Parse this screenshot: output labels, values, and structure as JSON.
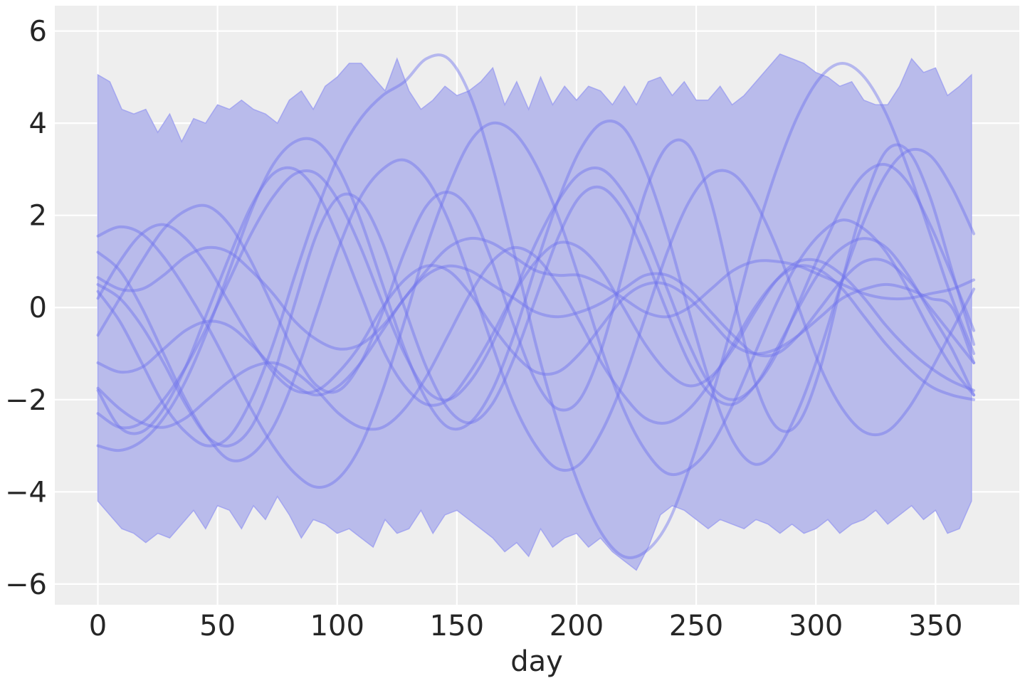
{
  "chart_data": {
    "type": "line",
    "title": "",
    "xlabel": "day",
    "ylabel": "",
    "xlim": [
      -18,
      385
    ],
    "ylim": [
      -6.45,
      6.55
    ],
    "x_ticks": [
      0,
      50,
      100,
      150,
      200,
      250,
      300,
      350
    ],
    "y_ticks": [
      -6,
      -4,
      -2,
      0,
      2,
      4,
      6
    ],
    "x_tick_labels": [
      "0",
      "50",
      "100",
      "150",
      "200",
      "250",
      "300",
      "350"
    ],
    "y_tick_labels": [
      "−6",
      "−4",
      "−2",
      "0",
      "2",
      "4",
      "6"
    ],
    "grid": true,
    "legend": "none",
    "colors": {
      "background": "#eeeeee",
      "grid": "#ffffff",
      "band_fill": "#b9bbeb",
      "band_edge": "#9a9cf0",
      "line": "#6f73ee"
    },
    "band": {
      "x": [
        0,
        5,
        10,
        15,
        20,
        25,
        30,
        35,
        40,
        45,
        50,
        55,
        60,
        65,
        70,
        75,
        80,
        85,
        90,
        95,
        100,
        105,
        110,
        115,
        120,
        125,
        130,
        135,
        140,
        145,
        150,
        155,
        160,
        165,
        170,
        175,
        180,
        185,
        190,
        195,
        200,
        205,
        210,
        215,
        220,
        225,
        230,
        235,
        240,
        245,
        250,
        255,
        260,
        265,
        270,
        275,
        280,
        285,
        290,
        295,
        300,
        305,
        310,
        315,
        320,
        325,
        330,
        335,
        340,
        345,
        350,
        355,
        360,
        365
      ],
      "upper": [
        5.05,
        4.9,
        4.3,
        4.2,
        4.3,
        3.8,
        4.2,
        3.6,
        4.1,
        4.0,
        4.4,
        4.3,
        4.5,
        4.3,
        4.2,
        4.0,
        4.5,
        4.7,
        4.3,
        4.8,
        5.0,
        5.3,
        5.3,
        5.0,
        4.7,
        5.4,
        4.7,
        4.3,
        4.5,
        4.8,
        4.6,
        4.7,
        4.9,
        5.2,
        4.4,
        4.9,
        4.3,
        5.0,
        4.4,
        4.8,
        4.5,
        4.8,
        4.7,
        4.4,
        4.8,
        4.4,
        4.9,
        5.0,
        4.6,
        4.9,
        4.5,
        4.5,
        4.8,
        4.4,
        4.6,
        4.9,
        5.2,
        5.5,
        5.4,
        5.3,
        5.1,
        5.0,
        4.8,
        4.9,
        4.5,
        4.4,
        4.4,
        4.8,
        5.4,
        5.1,
        5.2,
        4.6,
        4.8,
        5.05
      ],
      "lower": [
        -4.2,
        -4.5,
        -4.8,
        -4.9,
        -5.1,
        -4.9,
        -5.0,
        -4.7,
        -4.4,
        -4.8,
        -4.3,
        -4.4,
        -4.8,
        -4.3,
        -4.6,
        -4.1,
        -4.5,
        -5.0,
        -4.6,
        -4.7,
        -4.9,
        -4.8,
        -5.0,
        -5.2,
        -4.6,
        -4.9,
        -4.8,
        -4.4,
        -4.9,
        -4.5,
        -4.4,
        -4.6,
        -4.8,
        -5.0,
        -5.3,
        -5.1,
        -5.4,
        -4.8,
        -5.2,
        -5.0,
        -4.9,
        -5.2,
        -5.0,
        -5.3,
        -5.5,
        -5.7,
        -5.2,
        -4.5,
        -4.3,
        -4.4,
        -4.6,
        -4.8,
        -4.6,
        -4.7,
        -4.8,
        -4.6,
        -4.7,
        -4.9,
        -4.7,
        -4.9,
        -4.8,
        -4.6,
        -4.9,
        -4.7,
        -4.6,
        -4.4,
        -4.7,
        -4.5,
        -4.3,
        -4.6,
        -4.4,
        -4.9,
        -4.8,
        -4.2
      ]
    },
    "x_range": [
      0,
      366
    ],
    "series": [
      {
        "values": [
          1.55,
          1.75,
          1.6,
          1.1,
          0.4,
          -0.4,
          -1.3,
          -2.2,
          -3.0,
          -3.6,
          -3.9,
          -3.7,
          -3.0,
          -1.8,
          -0.3,
          1.3,
          2.6,
          3.6,
          4.0,
          3.8,
          3.1,
          2.0,
          0.6,
          -0.9,
          -2.2,
          -3.1,
          -3.6,
          -3.5,
          -3.0,
          -2.1,
          -1.0,
          0.1,
          1.0,
          1.6,
          1.9,
          1.7,
          1.2,
          0.4,
          -0.5,
          -1.3,
          -1.9
        ]
      },
      {
        "values": [
          0.5,
          0.2,
          -0.4,
          -1.2,
          -2.1,
          -2.8,
          -3.0,
          -2.6,
          -1.5,
          0.1,
          1.6,
          2.4,
          2.3,
          1.4,
          0.0,
          -1.3,
          -2.2,
          -2.5,
          -2.1,
          -1.1,
          0.2,
          1.5,
          2.4,
          2.6,
          2.1,
          1.1,
          -0.1,
          -1.2,
          -1.9,
          -2.1,
          -1.7,
          -0.9,
          0.0,
          0.8,
          1.3,
          1.5,
          1.3,
          0.7,
          -0.1,
          -0.9,
          -1.9
        ]
      },
      {
        "values": [
          -3.0,
          -3.1,
          -2.9,
          -2.4,
          -1.6,
          -0.5,
          0.8,
          2.1,
          3.1,
          3.6,
          3.6,
          3.0,
          1.9,
          0.5,
          -0.9,
          -2.0,
          -2.6,
          -2.5,
          -1.8,
          -0.6,
          0.9,
          2.3,
          3.4,
          4.0,
          3.9,
          3.0,
          1.6,
          -0.1,
          -1.7,
          -2.9,
          -3.4,
          -3.1,
          -2.2,
          -0.9,
          0.6,
          1.9,
          2.9,
          3.4,
          3.3,
          2.6,
          1.6
        ]
      },
      {
        "values": [
          -0.6,
          0.2,
          1.0,
          1.7,
          2.1,
          2.2,
          1.8,
          1.0,
          0.0,
          -1.0,
          -1.7,
          -1.8,
          -1.2,
          -0.1,
          1.2,
          2.2,
          2.5,
          2.1,
          1.0,
          -0.4,
          -1.6,
          -2.2,
          -2.0,
          -0.9,
          0.8,
          2.5,
          3.5,
          3.5,
          2.3,
          0.3,
          -1.6,
          -2.6,
          -2.5,
          -1.3,
          0.6,
          2.3,
          3.4,
          3.4,
          2.4,
          0.8,
          -0.8
        ]
      },
      {
        "values": [
          0.65,
          0.4,
          0.4,
          0.7,
          1.1,
          1.3,
          1.2,
          0.8,
          0.3,
          -0.3,
          -0.7,
          -0.9,
          -0.8,
          -0.4,
          0.2,
          0.8,
          1.3,
          1.5,
          1.4,
          1.1,
          0.8,
          0.7,
          0.7,
          0.5,
          0.2,
          -0.1,
          -0.2,
          0.0,
          0.4,
          0.8,
          1.0,
          1.0,
          0.9,
          0.7,
          0.5,
          0.3,
          0.2,
          0.2,
          0.3,
          0.4,
          0.6
        ]
      },
      {
        "values": [
          -1.2,
          -1.4,
          -1.3,
          -0.9,
          -0.5,
          -0.3,
          -0.4,
          -0.8,
          -1.3,
          -1.7,
          -1.9,
          -1.7,
          -1.2,
          -0.5,
          0.2,
          0.7,
          0.9,
          0.8,
          0.5,
          0.2,
          -0.1,
          -0.2,
          -0.1,
          0.1,
          0.4,
          0.7,
          0.7,
          0.4,
          -0.1,
          -0.6,
          -1.0,
          -1.0,
          -0.6,
          0.0,
          0.6,
          1.0,
          1.0,
          0.6,
          0.0,
          -0.6,
          -1.2
        ]
      },
      {
        "values": [
          -1.8,
          -2.6,
          -2.7,
          -2.2,
          -1.3,
          -0.1,
          1.1,
          2.2,
          2.9,
          3.0,
          2.5,
          1.5,
          0.3,
          -0.9,
          -1.7,
          -2.1,
          -2.0,
          -1.4,
          -0.6,
          0.3,
          1.0,
          1.4,
          1.3,
          0.8,
          0.0,
          -0.8,
          -1.4,
          -1.7,
          -1.5,
          -0.9,
          -0.1,
          0.6,
          1.0,
          1.0,
          0.7,
          0.2,
          -0.4,
          -0.9,
          -1.3,
          -1.6,
          -1.8
        ]
      },
      {
        "values": [
          -2.3,
          -2.6,
          -2.5,
          -2.0,
          -1.3,
          -0.4,
          0.6,
          1.6,
          2.4,
          2.9,
          2.9,
          2.3,
          1.3,
          0.1,
          -1.0,
          -1.8,
          -2.0,
          -1.6,
          -0.8,
          0.3,
          1.4,
          2.3,
          2.9,
          3.0,
          2.5,
          1.6,
          0.4,
          -0.8,
          -1.7,
          -2.0,
          -1.7,
          -1.0,
          0.1,
          1.2,
          2.2,
          2.9,
          3.1,
          2.7,
          1.8,
          0.7,
          -0.5
        ]
      },
      {
        "values": [
          0.2,
          1.0,
          1.6,
          1.8,
          1.5,
          0.9,
          0.1,
          -0.7,
          -1.4,
          -1.8,
          -1.8,
          -1.4,
          -0.8,
          0.0,
          0.6,
          0.9,
          0.8,
          0.3,
          -0.4,
          -1.0,
          -1.4,
          -1.4,
          -1.0,
          -0.4,
          0.2,
          0.5,
          0.5,
          0.2,
          -0.3,
          -0.8,
          -1.0,
          -0.9,
          -0.6,
          -0.2,
          0.2,
          0.4,
          0.5,
          0.4,
          0.2,
          0.0,
          -1.2
        ]
      },
      {
        "values": [
          -1.75,
          -2.2,
          -2.5,
          -2.6,
          -2.4,
          -2.0,
          -1.6,
          -1.3,
          -1.2,
          -1.4,
          -1.8,
          -2.3,
          -2.6,
          -2.6,
          -2.2,
          -1.5,
          -0.6,
          0.3,
          1.0,
          1.3,
          1.1,
          0.5,
          -0.3,
          -1.2,
          -1.9,
          -2.4,
          -2.5,
          -2.2,
          -1.6,
          -0.8,
          0.0,
          0.6,
          0.9,
          0.8,
          0.4,
          -0.2,
          -0.8,
          -1.3,
          -1.7,
          -1.9,
          -2.0
        ]
      },
      {
        "values": [
          0.35,
          -0.3,
          -1.2,
          -2.1,
          -2.7,
          -3.0,
          -2.8,
          -2.0,
          -0.8,
          0.7,
          2.1,
          3.3,
          4.1,
          4.6,
          4.9,
          5.4,
          5.4,
          4.6,
          3.1,
          1.2,
          -0.8,
          -2.5,
          -3.9,
          -4.9,
          -5.4,
          -5.3,
          -4.7,
          -3.5,
          -2.0,
          -0.3,
          1.5,
          3.0,
          4.2,
          5.0,
          5.3,
          5.0,
          4.2,
          3.0,
          1.6,
          0.2,
          -1.0
        ]
      },
      {
        "values": [
          1.2,
          0.8,
          0.0,
          -1.0,
          -2.0,
          -2.8,
          -3.3,
          -3.2,
          -2.6,
          -1.5,
          -0.1,
          1.3,
          2.4,
          3.0,
          3.2,
          2.8,
          1.9,
          0.6,
          -0.8,
          -2.1,
          -3.0,
          -3.5,
          -3.4,
          -2.7,
          -1.6,
          -0.2,
          1.2,
          2.3,
          2.9,
          2.9,
          2.3,
          1.3,
          0.0,
          -1.3,
          -2.2,
          -2.7,
          -2.7,
          -2.2,
          -1.4,
          -0.5,
          0.4
        ]
      }
    ]
  }
}
